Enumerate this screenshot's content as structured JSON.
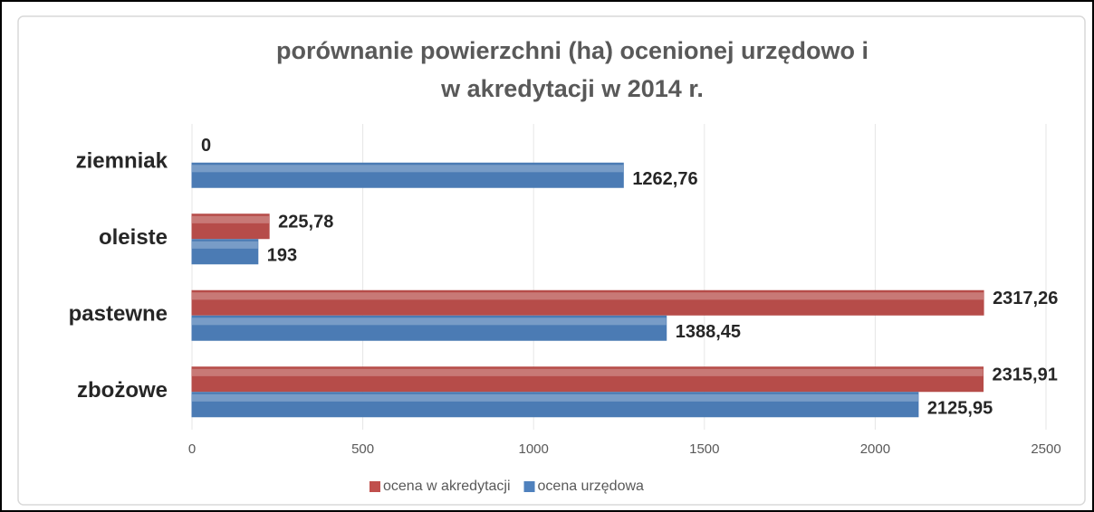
{
  "chart_data": {
    "type": "bar",
    "orientation": "horizontal",
    "title": [
      "porównanie powierzchni (ha) ocenionej urzędowo i",
      "w akredytacji w 2014 r."
    ],
    "categories": [
      "ziemniak",
      "oleiste",
      "pastewne",
      "zbożowe"
    ],
    "series": [
      {
        "name": "ocena w akredytacji",
        "color": "#c0504d",
        "values": [
          0,
          225.78,
          2317.26,
          2315.91
        ],
        "value_labels": [
          "0",
          "225,78",
          "2317,26",
          "2315,91"
        ]
      },
      {
        "name": "ocena urzędowa",
        "color": "#4f81bd",
        "values": [
          1262.76,
          193,
          1388.45,
          2125.95
        ],
        "value_labels": [
          "1262,76",
          "193",
          "1388,45",
          "2125,95"
        ]
      }
    ],
    "xlim": [
      0,
      2500
    ],
    "xticks": [
      0,
      500,
      1000,
      1500,
      2000,
      2500
    ],
    "grid": true,
    "legend": "bottom"
  }
}
